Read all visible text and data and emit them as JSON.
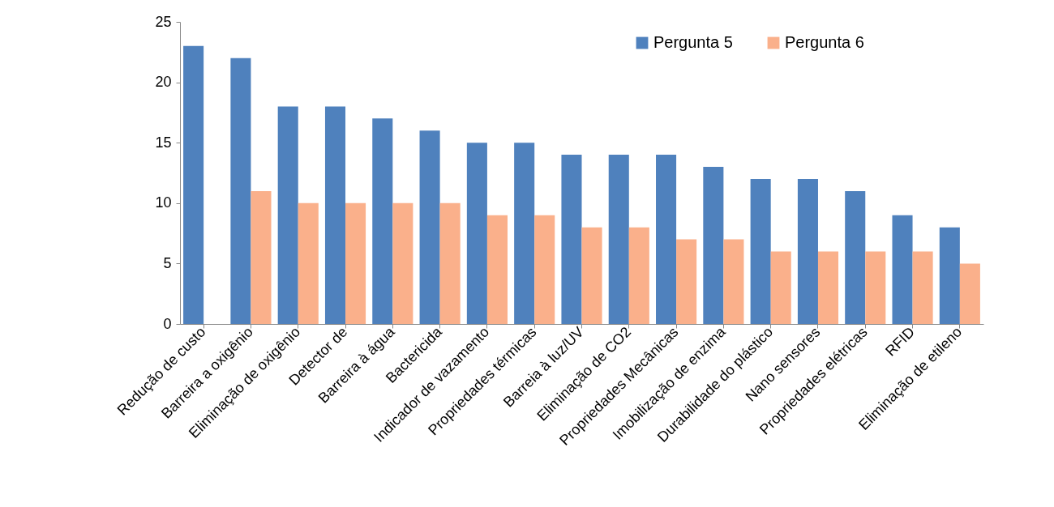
{
  "chart_data": {
    "type": "bar",
    "categories": [
      "Redução de custo",
      "Barreira a oxigênio",
      "Eliminação de oxigênio",
      "Detector de",
      "Barreira à água",
      "Bactericida",
      "Indicador de vazamento",
      "Propriedades térmicas",
      "Barreia à luz/UV",
      "Eliminação de CO2",
      "Propriedades Mecânicas",
      "Imobilização de enzima",
      "Durabilidade do plástico",
      "Nano sensores",
      "Propriedades elétricas",
      "RFID",
      "Eliminação de etileno"
    ],
    "series": [
      {
        "name": "Pergunta 5",
        "color": "#4f81bd",
        "values": [
          23,
          22,
          18,
          18,
          17,
          16,
          15,
          15,
          14,
          14,
          14,
          13,
          12,
          12,
          11,
          9,
          8
        ]
      },
      {
        "name": "Pergunta 6",
        "color": "#fab08b",
        "values": [
          null,
          11,
          10,
          10,
          10,
          10,
          9,
          9,
          8,
          8,
          7,
          7,
          6,
          6,
          6,
          6,
          5
        ]
      }
    ],
    "ylim": [
      0,
      25
    ],
    "yticks": [
      0,
      5,
      10,
      15,
      20,
      25
    ],
    "grid": false,
    "legend": "top right"
  }
}
